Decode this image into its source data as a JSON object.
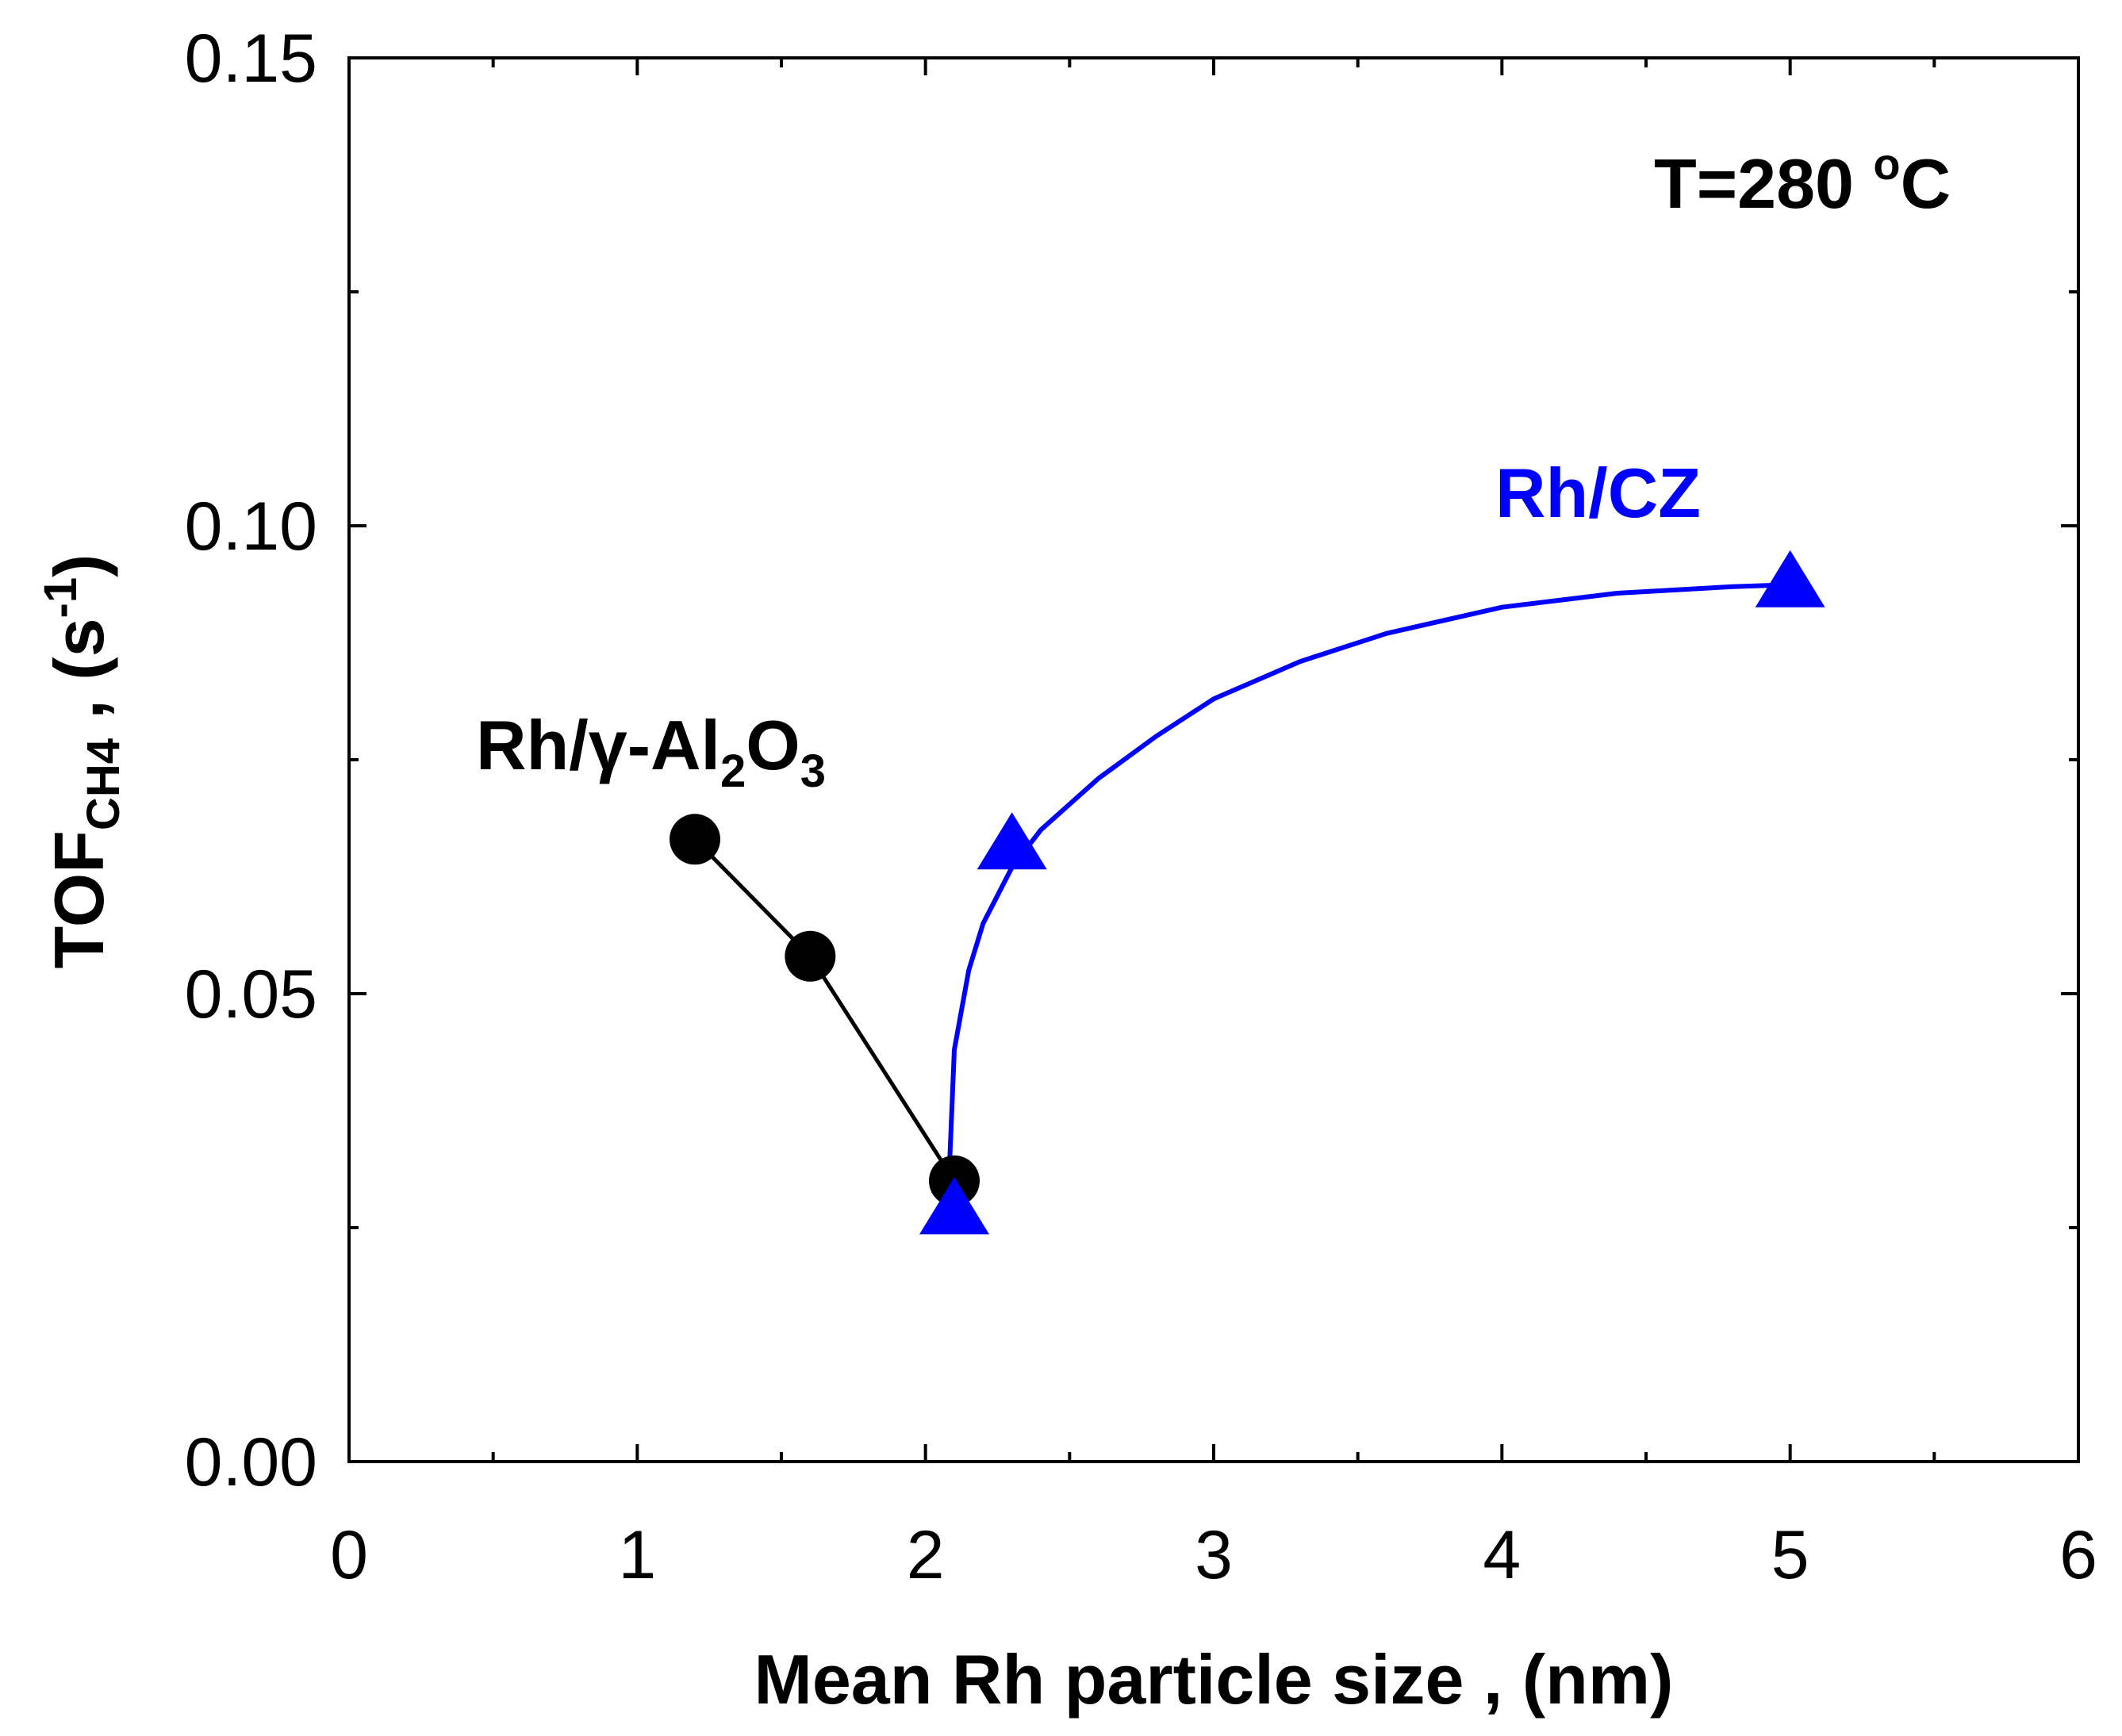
{
  "chart_data": {
    "type": "line",
    "title": "",
    "xlabel": "Mean Rh particle size , (nm)",
    "ylabel": {
      "main": "TOF",
      "subscript": "CH4",
      "unit_prefix": " , (s",
      "unit_superscript": "-1",
      "unit_suffix": ")"
    },
    "xlim": [
      0,
      6
    ],
    "ylim": [
      0.0,
      0.15
    ],
    "xticks": [
      "0",
      "1",
      "2",
      "3",
      "4",
      "5",
      "6"
    ],
    "yticks": [
      "0.00",
      "0.05",
      "0.10",
      "0.15"
    ],
    "grid": false,
    "legend": "none",
    "annotations": {
      "temperature": {
        "prefix": "T=280 ",
        "superscript": "o",
        "suffix": "C"
      },
      "alumina_label": {
        "main": "Rh/γ-Al",
        "sub1": "2",
        "mid": "O",
        "sub2": "3"
      },
      "cz_label": "Rh/CZ"
    },
    "series": [
      {
        "name": "Rh/γ-Al2O3",
        "color": "#000000",
        "marker": "circle",
        "line": "straight",
        "x": [
          1.2,
          1.6,
          2.1
        ],
        "y": [
          0.0665,
          0.054,
          0.03
        ]
      },
      {
        "name": "Rh/CZ",
        "color": "#0000ff",
        "marker": "triangle",
        "line": "smooth",
        "x": [
          2.1,
          2.3,
          5.0
        ],
        "y": [
          0.027,
          0.066,
          0.094
        ]
      }
    ],
    "fit_curve_cz": {
      "color": "#0000ff",
      "x": [
        2.08,
        2.1,
        2.15,
        2.2,
        2.3,
        2.4,
        2.6,
        2.8,
        3.0,
        3.3,
        3.6,
        4.0,
        4.4,
        4.8,
        5.0
      ],
      "y": [
        0.029,
        0.044,
        0.0525,
        0.0575,
        0.0635,
        0.0675,
        0.073,
        0.0775,
        0.0815,
        0.0855,
        0.0885,
        0.0913,
        0.0928,
        0.0935,
        0.0937
      ]
    }
  }
}
